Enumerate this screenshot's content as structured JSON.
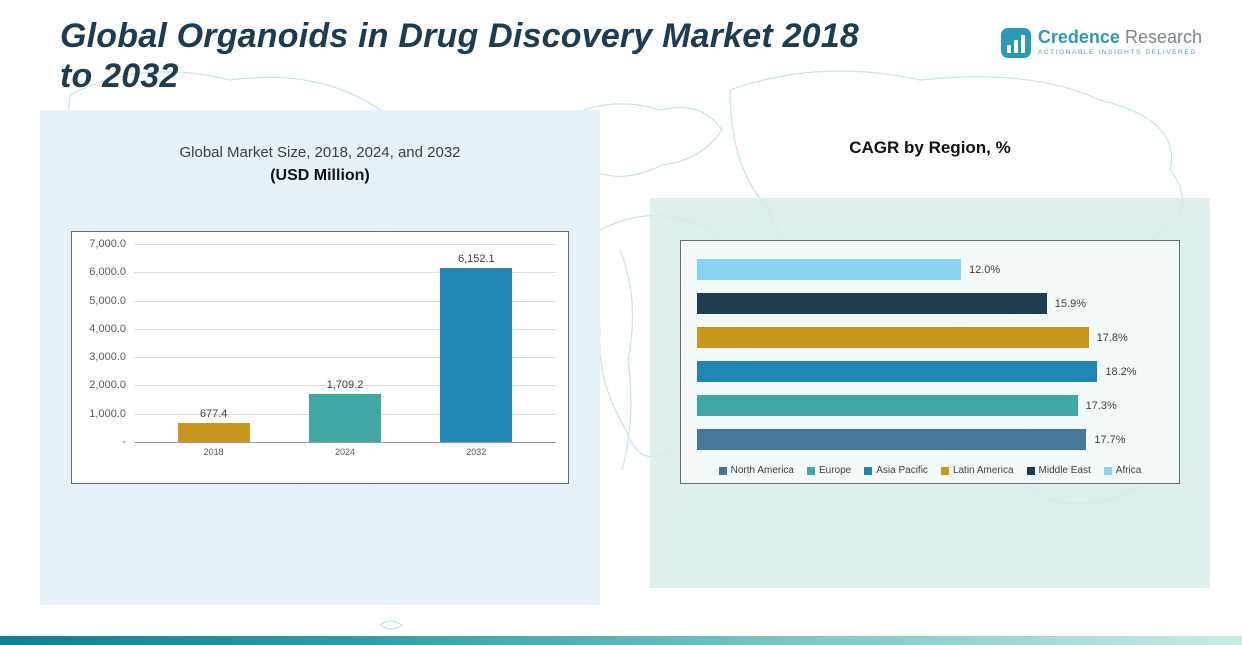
{
  "page": {
    "title_line1": "Global Organoids in Drug Discovery Market 2018",
    "title_line2": "to 2032"
  },
  "logo": {
    "brand_primary": "Credence",
    "brand_secondary": "Research",
    "tagline": "Actionable Insights Delivered"
  },
  "left_panel": {
    "heading": "Global Market Size, 2018, 2024, and 2032",
    "subheading": "(USD Million)"
  },
  "right_panel": {
    "heading": "CAGR by Region, %"
  },
  "chart_data": [
    {
      "type": "bar",
      "title": "Global Market Size, 2018, 2024, and 2032 (USD Million)",
      "categories": [
        "2018",
        "2024",
        "2032"
      ],
      "values": [
        677.4,
        1709.2,
        6152.1
      ],
      "value_labels": [
        "677.4",
        "1,709.2",
        "6,152.1"
      ],
      "bar_colors": [
        "#C9971C",
        "#3FA8A3",
        "#1F86B4"
      ],
      "ylabel": "USD Million",
      "ylim": [
        0,
        7000
      ],
      "ytick_labels": [
        "7,000.0",
        "6,000.0",
        "5,000.0",
        "4,000.0",
        "3,000.0",
        "2,000.0",
        "1,000.0",
        "-"
      ],
      "grid": true,
      "legend_position": "none"
    },
    {
      "type": "bar-horizontal",
      "title": "CAGR by Region, %",
      "categories": [
        "Africa",
        "Middle East",
        "Latin America",
        "Asia Pacific",
        "Europe",
        "North America"
      ],
      "values": [
        12.0,
        15.9,
        17.8,
        18.2,
        17.3,
        17.7
      ],
      "value_labels": [
        "12.0%",
        "15.9%",
        "17.8%",
        "18.2%",
        "17.3%",
        "17.7%"
      ],
      "bar_colors": [
        "#87D3F2",
        "#1E3D4F",
        "#C9971C",
        "#1F86B4",
        "#3FA8A3",
        "#44789B"
      ],
      "xlim": [
        0,
        21
      ],
      "grid": false,
      "legend_position": "bottom",
      "legend": [
        {
          "label": "North America",
          "color": "#44789B"
        },
        {
          "label": "Europe",
          "color": "#3FA8A3"
        },
        {
          "label": "Asia Pacific",
          "color": "#1F86B4"
        },
        {
          "label": "Latin America",
          "color": "#C9971C"
        },
        {
          "label": "Middle East",
          "color": "#1E3D4F"
        },
        {
          "label": "Africa",
          "color": "#87D3F2"
        }
      ]
    }
  ]
}
